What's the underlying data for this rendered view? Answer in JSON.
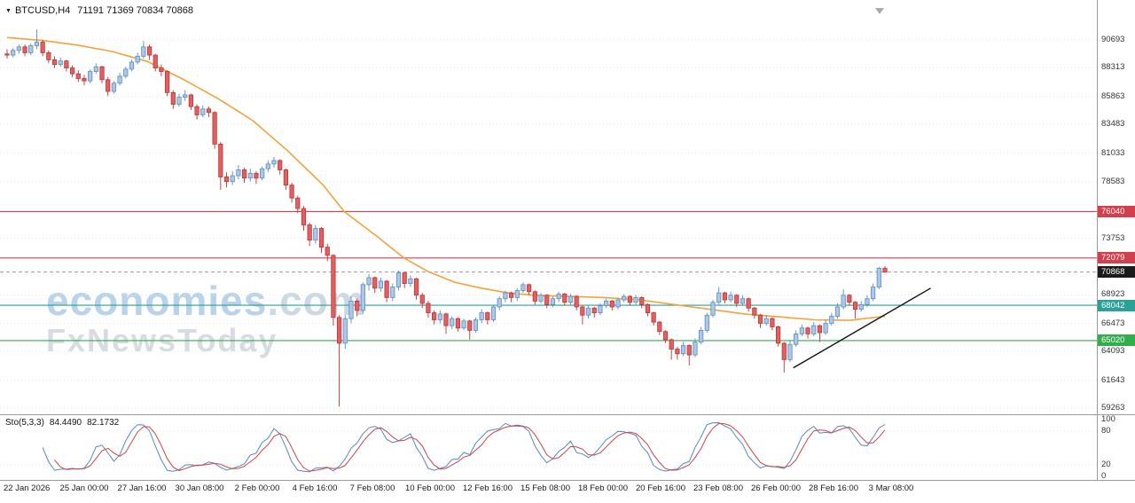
{
  "header": {
    "dropdown_icon": "▼",
    "symbol": "BTCUSD,H4",
    "ohlc": "71191 71369 70834 70868"
  },
  "watermark": {
    "line1_main": "economies",
    "line1_suffix": ".com",
    "line2": "FxNewsToday"
  },
  "indicator": {
    "name": "Sto(5,3,3)",
    "k_value": "84.4490",
    "d_value": "82.1732",
    "axis_ticks": [
      100,
      80,
      20,
      0
    ],
    "k_period": 5,
    "slowing": 3,
    "d_period": 3
  },
  "price_axis": {
    "top_tick": 90693,
    "bottom_tick": 59263,
    "ticks": [
      90693,
      88313,
      85863,
      83483,
      81033,
      78583,
      73753,
      68923,
      66473,
      64093,
      61643,
      59263
    ]
  },
  "levels": [
    {
      "value": 76040,
      "color": "#d2404e",
      "role": "resistance"
    },
    {
      "value": 72079,
      "color": "#d2404e",
      "role": "resistance"
    },
    {
      "value": 68042,
      "color": "#2aa198",
      "role": "support"
    },
    {
      "value": 65020,
      "color": "#2fae49",
      "role": "support"
    }
  ],
  "current_price": {
    "value": 70868,
    "tag_color": "#1b1b1b"
  },
  "time_axis": {
    "labels": [
      "22 Jan 2026",
      "25 Jan 00:00",
      "27 Jan 16:00",
      "30 Jan 08:00",
      "2 Feb 00:00",
      "4 Feb 16:00",
      "7 Feb 08:00",
      "10 Feb 00:00",
      "12 Feb 16:00",
      "15 Feb 08:00",
      "18 Feb 00:00",
      "20 Feb 16:00",
      "23 Feb 08:00",
      "26 Feb 00:00",
      "28 Feb 16:00",
      "3 Mar 08:00"
    ]
  },
  "colors": {
    "up_fill": "#adc8e6",
    "up_border": "#5c8cc0",
    "down_fill": "#e26060",
    "down_border": "#bb3434",
    "grid": "#e5e5e5",
    "separator": "#9a9a9a",
    "stoch_k": "#5588bb",
    "stoch_d": "#cc4444",
    "current_line": "#777777"
  },
  "chart_data": {
    "type": "candlestick",
    "symbol": "BTCUSD",
    "timeframe": "H4",
    "title": "BTCUSD H4 candlestick chart with MA, horizontal levels, trendline and Stochastic(5,3,3)",
    "ylim": [
      59263,
      91700
    ],
    "legend_position": "none",
    "grid": "dotted-horizontal",
    "last_ohlc": {
      "open": 71191,
      "high": 71369,
      "low": 70834,
      "close": 70868
    },
    "candles": [
      [
        89500,
        89900,
        89100,
        89400
      ],
      [
        89400,
        90000,
        89200,
        89800
      ],
      [
        89800,
        90300,
        89500,
        90100
      ],
      [
        90100,
        90300,
        89300,
        89600
      ],
      [
        89600,
        90400,
        89400,
        90200
      ],
      [
        90200,
        91600,
        89900,
        90500
      ],
      [
        90500,
        90700,
        89300,
        89600
      ],
      [
        89600,
        89800,
        88700,
        89000
      ],
      [
        89000,
        89300,
        88300,
        88600
      ],
      [
        88600,
        89200,
        88400,
        88900
      ],
      [
        88900,
        89000,
        88000,
        88300
      ],
      [
        88300,
        88500,
        87500,
        87800
      ],
      [
        87800,
        88100,
        87100,
        87400
      ],
      [
        87400,
        87700,
        86800,
        87200
      ],
      [
        87200,
        88200,
        87000,
        88000
      ],
      [
        88000,
        88700,
        87800,
        88400
      ],
      [
        88400,
        88500,
        87000,
        87300
      ],
      [
        87300,
        87500,
        85900,
        86300
      ],
      [
        86300,
        87200,
        86100,
        87000
      ],
      [
        87000,
        87900,
        86800,
        87600
      ],
      [
        87600,
        88400,
        87400,
        88200
      ],
      [
        88200,
        89000,
        88000,
        88800
      ],
      [
        88800,
        89600,
        88600,
        89300
      ],
      [
        89300,
        90600,
        89100,
        90100
      ],
      [
        90100,
        90300,
        89000,
        89400
      ],
      [
        89400,
        89500,
        88000,
        88300
      ],
      [
        88300,
        88600,
        87600,
        88000
      ],
      [
        88000,
        88100,
        85900,
        86200
      ],
      [
        86200,
        86400,
        84800,
        85200
      ],
      [
        85200,
        86100,
        85000,
        85800
      ],
      [
        85800,
        86400,
        85500,
        86000
      ],
      [
        86000,
        86100,
        84700,
        85000
      ],
      [
        85000,
        85200,
        83900,
        84300
      ],
      [
        84300,
        85100,
        84100,
        84800
      ],
      [
        84800,
        85000,
        84100,
        84500
      ],
      [
        84500,
        84600,
        81400,
        81800
      ],
      [
        81800,
        82000,
        77900,
        79000
      ],
      [
        79000,
        79400,
        78100,
        78600
      ],
      [
        78600,
        79500,
        78300,
        79100
      ],
      [
        79100,
        80000,
        78800,
        79600
      ],
      [
        79600,
        79800,
        78500,
        78900
      ],
      [
        78900,
        79700,
        78600,
        79300
      ],
      [
        79300,
        79500,
        78400,
        78900
      ],
      [
        78900,
        79900,
        78700,
        79700
      ],
      [
        79700,
        80400,
        79400,
        80100
      ],
      [
        80100,
        80700,
        79800,
        80400
      ],
      [
        80400,
        80500,
        79200,
        79600
      ],
      [
        79600,
        79700,
        77900,
        78300
      ],
      [
        78300,
        78500,
        76800,
        77200
      ],
      [
        77200,
        77400,
        75900,
        76300
      ],
      [
        76300,
        76500,
        74400,
        74900
      ],
      [
        74900,
        75100,
        73100,
        73600
      ],
      [
        73600,
        74900,
        73300,
        74600
      ],
      [
        74600,
        74700,
        72500,
        73000
      ],
      [
        73000,
        73300,
        71800,
        72300
      ],
      [
        72300,
        72400,
        66300,
        67000
      ],
      [
        67000,
        67200,
        59400,
        64800
      ],
      [
        64800,
        67200,
        64300,
        66900
      ],
      [
        66900,
        68800,
        66500,
        68400
      ],
      [
        68400,
        68600,
        67100,
        67600
      ],
      [
        67600,
        70000,
        67300,
        69800
      ],
      [
        69800,
        70700,
        69300,
        70400
      ],
      [
        70400,
        70500,
        69100,
        69500
      ],
      [
        69500,
        70400,
        69200,
        70100
      ],
      [
        70100,
        70200,
        68300,
        68700
      ],
      [
        68700,
        69900,
        68400,
        69600
      ],
      [
        69600,
        71000,
        69300,
        70800
      ],
      [
        70800,
        70900,
        69500,
        69900
      ],
      [
        69900,
        70600,
        69600,
        70300
      ],
      [
        70300,
        70400,
        68500,
        68900
      ],
      [
        68900,
        69100,
        67800,
        68200
      ],
      [
        68200,
        68400,
        67000,
        67400
      ],
      [
        67400,
        67600,
        66400,
        66800
      ],
      [
        66800,
        67600,
        66500,
        67300
      ],
      [
        67300,
        67400,
        65600,
        66300
      ],
      [
        66300,
        67100,
        66000,
        66900
      ],
      [
        66900,
        67000,
        65800,
        66100
      ],
      [
        66100,
        66900,
        65900,
        66700
      ],
      [
        66700,
        66800,
        65100,
        65900
      ],
      [
        65900,
        67000,
        65700,
        66800
      ],
      [
        66800,
        67700,
        66500,
        67400
      ],
      [
        67400,
        67500,
        66400,
        66800
      ],
      [
        66800,
        68100,
        66600,
        67900
      ],
      [
        67900,
        68800,
        67600,
        68600
      ],
      [
        68600,
        69300,
        68300,
        69100
      ],
      [
        69100,
        69200,
        68300,
        68700
      ],
      [
        68700,
        69500,
        68400,
        69300
      ],
      [
        69300,
        70000,
        69100,
        69800
      ],
      [
        69800,
        69900,
        68900,
        69200
      ],
      [
        69200,
        69300,
        68100,
        68400
      ],
      [
        68400,
        69100,
        68200,
        68900
      ],
      [
        68900,
        69000,
        67800,
        68100
      ],
      [
        68100,
        68800,
        67900,
        68600
      ],
      [
        68600,
        69200,
        68300,
        69000
      ],
      [
        69000,
        69100,
        68000,
        68300
      ],
      [
        68300,
        69000,
        68100,
        68800
      ],
      [
        68800,
        68900,
        67600,
        67900
      ],
      [
        67900,
        68000,
        66400,
        67200
      ],
      [
        67200,
        68000,
        66900,
        67800
      ],
      [
        67800,
        67900,
        67000,
        67400
      ],
      [
        67400,
        68200,
        67200,
        68000
      ],
      [
        68000,
        68600,
        67800,
        68400
      ],
      [
        68400,
        68500,
        67600,
        67900
      ],
      [
        67900,
        68700,
        67700,
        68500
      ],
      [
        68500,
        69000,
        68300,
        68800
      ],
      [
        68800,
        68900,
        68000,
        68300
      ],
      [
        68300,
        68900,
        68100,
        68700
      ],
      [
        68700,
        68800,
        67800,
        68100
      ],
      [
        68100,
        68200,
        67100,
        67400
      ],
      [
        67400,
        67500,
        66300,
        66600
      ],
      [
        66600,
        66700,
        65500,
        65800
      ],
      [
        65800,
        65900,
        64800,
        65100
      ],
      [
        65100,
        65200,
        63400,
        64300
      ],
      [
        64300,
        64500,
        63400,
        63900
      ],
      [
        63900,
        64900,
        63700,
        64600
      ],
      [
        64600,
        64700,
        62900,
        63800
      ],
      [
        63800,
        65200,
        63600,
        64900
      ],
      [
        64900,
        66200,
        64700,
        65900
      ],
      [
        65900,
        67400,
        65700,
        67200
      ],
      [
        67200,
        68500,
        67000,
        68300
      ],
      [
        68300,
        69600,
        68100,
        69100
      ],
      [
        69100,
        69200,
        68200,
        68500
      ],
      [
        68500,
        69200,
        68300,
        68900
      ],
      [
        68900,
        69000,
        67900,
        68200
      ],
      [
        68200,
        68900,
        68000,
        68600
      ],
      [
        68600,
        68700,
        67500,
        67800
      ],
      [
        67800,
        67900,
        66900,
        67200
      ],
      [
        67200,
        67300,
        66100,
        66500
      ],
      [
        66500,
        67200,
        66300,
        66900
      ],
      [
        66900,
        67000,
        65900,
        66200
      ],
      [
        66200,
        66300,
        64500,
        64800
      ],
      [
        64800,
        64900,
        62300,
        63400
      ],
      [
        63400,
        65000,
        63200,
        64700
      ],
      [
        64700,
        65900,
        64500,
        65600
      ],
      [
        65600,
        66400,
        65400,
        66100
      ],
      [
        66100,
        66200,
        65200,
        65600
      ],
      [
        65600,
        66600,
        65400,
        66300
      ],
      [
        66300,
        66400,
        64900,
        65700
      ],
      [
        65700,
        66800,
        65500,
        66500
      ],
      [
        66500,
        67400,
        66300,
        67100
      ],
      [
        67100,
        68200,
        66900,
        67900
      ],
      [
        67900,
        69400,
        67700,
        68900
      ],
      [
        68900,
        69000,
        68000,
        68300
      ],
      [
        68300,
        68400,
        66900,
        67700
      ],
      [
        67700,
        68400,
        67500,
        68100
      ],
      [
        68100,
        68900,
        67900,
        68600
      ],
      [
        68600,
        69900,
        68400,
        69600
      ],
      [
        69600,
        71320,
        69400,
        71200
      ],
      [
        71191,
        71369,
        70834,
        70868
      ]
    ],
    "ma_line": {
      "name": "moving-average",
      "color": "#f2a33c",
      "points": [
        [
          0,
          90900
        ],
        [
          0.04,
          90650
        ],
        [
          0.08,
          90250
        ],
        [
          0.12,
          89700
        ],
        [
          0.16,
          88850
        ],
        [
          0.2,
          87350
        ],
        [
          0.24,
          85700
        ],
        [
          0.28,
          83800
        ],
        [
          0.32,
          81200
        ],
        [
          0.36,
          78300
        ],
        [
          0.384,
          76040
        ],
        [
          0.42,
          74000
        ],
        [
          0.452,
          72079
        ],
        [
          0.48,
          70900
        ],
        [
          0.51,
          70000
        ],
        [
          0.54,
          69500
        ],
        [
          0.57,
          69100
        ],
        [
          0.6,
          68900
        ],
        [
          0.64,
          68800
        ],
        [
          0.68,
          68700
        ],
        [
          0.72,
          68500
        ],
        [
          0.76,
          68100
        ],
        [
          0.8,
          67700
        ],
        [
          0.84,
          67300
        ],
        [
          0.88,
          67050
        ],
        [
          0.92,
          66800
        ],
        [
          0.96,
          66750
        ],
        [
          1.0,
          67100
        ]
      ]
    },
    "trendline": {
      "color": "#111111",
      "x1_frac": 0.699,
      "price1": 62700,
      "x2_frac": 0.82,
      "price2": 69500
    },
    "oscillator": {
      "type": "stochastic",
      "range": [
        0,
        100
      ]
    }
  }
}
